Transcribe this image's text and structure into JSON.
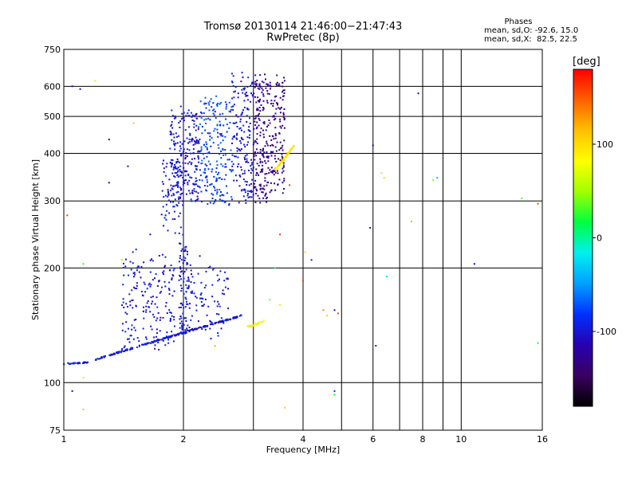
{
  "header": {
    "title_line1": "Tromsø 20130114 21:46:00−21:47:43",
    "title_line2": "RwPretec (8p)",
    "phases_title": "Phases",
    "phases_o": "mean, sd,O: -92.6, 15.0",
    "phases_x": "mean, sd,X:  82.5, 22.5"
  },
  "colorbar": {
    "unit": "[deg]",
    "range": [
      -180,
      180
    ],
    "ticks": [
      {
        "value": 100,
        "label": "100"
      },
      {
        "value": 0,
        "label": "0"
      },
      {
        "value": -100,
        "label": "-100"
      }
    ],
    "stops": [
      "#000000",
      "#3a0060",
      "#2800b0",
      "#0030ff",
      "#00a0ff",
      "#00f0f0",
      "#00ff40",
      "#a0ff00",
      "#ffff00",
      "#ffc000",
      "#ff6000",
      "#ff0000"
    ]
  },
  "chart_data": {
    "type": "scatter",
    "xlabel": "Frequency [MHz]",
    "ylabel": "Stationary phase Virtual Height [km]",
    "x_scale": "log",
    "y_scale": "log",
    "xlim": [
      1,
      16
    ],
    "ylim": [
      75,
      750
    ],
    "grid": true,
    "x_ticks": [
      {
        "value": 1,
        "label": "1"
      },
      {
        "value": 2,
        "label": "2"
      },
      {
        "value": 4,
        "label": "4"
      },
      {
        "value": 6,
        "label": "6"
      },
      {
        "value": 8,
        "label": "8"
      },
      {
        "value": 10,
        "label": "10"
      },
      {
        "value": 16,
        "label": "16"
      }
    ],
    "x_minor_grid": [
      3,
      5,
      7,
      9
    ],
    "y_ticks": [
      {
        "value": 75,
        "label": "75"
      },
      {
        "value": 100,
        "label": "100"
      },
      {
        "value": 200,
        "label": "200"
      },
      {
        "value": 300,
        "label": "300"
      },
      {
        "value": 400,
        "label": "400"
      },
      {
        "value": 500,
        "label": "500"
      },
      {
        "value": 600,
        "label": "600"
      },
      {
        "value": 750,
        "label": "750"
      }
    ],
    "trace_clusters": [
      {
        "mode": "O",
        "f_from": 1.0,
        "f_to": 1.15,
        "h_from": 112,
        "h_to": 113,
        "phase": -95,
        "spread": 0.015,
        "count": 30
      },
      {
        "mode": "O",
        "f_from": 1.2,
        "f_to": 1.85,
        "h_from": 115,
        "h_to": 132,
        "phase": -95,
        "spread": 0.015,
        "count": 120
      },
      {
        "mode": "O",
        "f_from": 1.85,
        "f_to": 2.8,
        "h_from": 132,
        "h_to": 150,
        "phase": -100,
        "spread": 0.015,
        "count": 120
      },
      {
        "mode": "O",
        "f_from": 1.4,
        "f_to": 1.9,
        "h_from": 125,
        "h_to": 215,
        "phase": -100,
        "spread": 0.15,
        "count": 180
      },
      {
        "mode": "O",
        "f_from": 1.95,
        "f_to": 2.05,
        "h_from": 135,
        "h_to": 230,
        "phase": -100,
        "spread": 0.12,
        "count": 80
      },
      {
        "mode": "O",
        "f_from": 2.05,
        "f_to": 2.6,
        "h_from": 135,
        "h_to": 200,
        "phase": -100,
        "spread": 0.15,
        "count": 90
      },
      {
        "mode": "X",
        "f_from": 2.9,
        "f_to": 3.2,
        "h_from": 140,
        "h_to": 145,
        "phase": 80,
        "spread": 0.02,
        "count": 25
      },
      {
        "mode": "O",
        "f_from": 1.75,
        "f_to": 2.0,
        "h_from": 240,
        "h_to": 380,
        "phase": -100,
        "spread": 0.08,
        "count": 80
      },
      {
        "mode": "O",
        "f_from": 1.85,
        "f_to": 2.2,
        "h_from": 300,
        "h_to": 520,
        "phase": -100,
        "spread": 0.12,
        "count": 220
      },
      {
        "mode": "O",
        "f_from": 2.2,
        "f_to": 2.65,
        "h_from": 295,
        "h_to": 560,
        "phase": -80,
        "spread": 0.12,
        "count": 200
      },
      {
        "mode": "O",
        "f_from": 2.65,
        "f_to": 3.0,
        "h_from": 300,
        "h_to": 640,
        "phase": -100,
        "spread": 0.12,
        "count": 160
      },
      {
        "mode": "O",
        "f_from": 3.0,
        "f_to": 3.25,
        "h_from": 300,
        "h_to": 640,
        "phase": -130,
        "spread": 0.12,
        "count": 160
      },
      {
        "mode": "O",
        "f_from": 3.25,
        "f_to": 3.6,
        "h_from": 320,
        "h_to": 640,
        "phase": -135,
        "spread": 0.12,
        "count": 150
      },
      {
        "mode": "X",
        "f_from": 3.4,
        "f_to": 3.8,
        "h_from": 360,
        "h_to": 420,
        "phase": 95,
        "spread": 0.03,
        "count": 60
      }
    ],
    "isolated_points": [
      {
        "f": 1.05,
        "h": 600,
        "phase": -110
      },
      {
        "f": 1.1,
        "h": 590,
        "phase": -110
      },
      {
        "f": 1.2,
        "h": 620,
        "phase": 95
      },
      {
        "f": 1.3,
        "h": 435,
        "phase": -120
      },
      {
        "f": 1.3,
        "h": 335,
        "phase": -110
      },
      {
        "f": 1.45,
        "h": 370,
        "phase": -110
      },
      {
        "f": 1.5,
        "h": 480,
        "phase": 110
      },
      {
        "f": 1.02,
        "h": 275,
        "phase": 160
      },
      {
        "f": 1.12,
        "h": 205,
        "phase": 20
      },
      {
        "f": 1.4,
        "h": 210,
        "phase": 50
      },
      {
        "f": 1.65,
        "h": 245,
        "phase": -110
      },
      {
        "f": 1.55,
        "h": 195,
        "phase": -110
      },
      {
        "f": 1.05,
        "h": 95,
        "phase": -110
      },
      {
        "f": 1.12,
        "h": 103,
        "phase": 100
      },
      {
        "f": 1.12,
        "h": 85,
        "phase": 110
      },
      {
        "f": 2.4,
        "h": 125,
        "phase": 120
      },
      {
        "f": 2.2,
        "h": 215,
        "phase": -100
      },
      {
        "f": 3.7,
        "h": 330,
        "phase": 160
      },
      {
        "f": 3.5,
        "h": 245,
        "phase": 160
      },
      {
        "f": 3.4,
        "h": 200,
        "phase": 0
      },
      {
        "f": 3.3,
        "h": 165,
        "phase": 40
      },
      {
        "f": 3.5,
        "h": 160,
        "phase": 100
      },
      {
        "f": 4.0,
        "h": 185,
        "phase": 160
      },
      {
        "f": 4.05,
        "h": 220,
        "phase": 100
      },
      {
        "f": 4.2,
        "h": 210,
        "phase": -100
      },
      {
        "f": 4.5,
        "h": 155,
        "phase": 140
      },
      {
        "f": 4.6,
        "h": 150,
        "phase": 110
      },
      {
        "f": 4.8,
        "h": 155,
        "phase": -110
      },
      {
        "f": 4.9,
        "h": 152,
        "phase": 160
      },
      {
        "f": 4.8,
        "h": 95,
        "phase": -90
      },
      {
        "f": 4.8,
        "h": 93,
        "phase": 20
      },
      {
        "f": 3.6,
        "h": 86,
        "phase": 110
      },
      {
        "f": 5.9,
        "h": 255,
        "phase": -110
      },
      {
        "f": 6.0,
        "h": 420,
        "phase": -110
      },
      {
        "f": 6.1,
        "h": 125,
        "phase": -100
      },
      {
        "f": 6.3,
        "h": 355,
        "phase": 100
      },
      {
        "f": 6.4,
        "h": 345,
        "phase": 100
      },
      {
        "f": 6.5,
        "h": 190,
        "phase": -20
      },
      {
        "f": 7.5,
        "h": 265,
        "phase": 40
      },
      {
        "f": 7.8,
        "h": 575,
        "phase": -110
      },
      {
        "f": 8.5,
        "h": 340,
        "phase": 40
      },
      {
        "f": 8.7,
        "h": 345,
        "phase": -40
      },
      {
        "f": 10.8,
        "h": 205,
        "phase": -110
      },
      {
        "f": 14.2,
        "h": 305,
        "phase": 30
      },
      {
        "f": 15.6,
        "h": 295,
        "phase": 160
      },
      {
        "f": 15.6,
        "h": 127,
        "phase": 10
      }
    ]
  }
}
